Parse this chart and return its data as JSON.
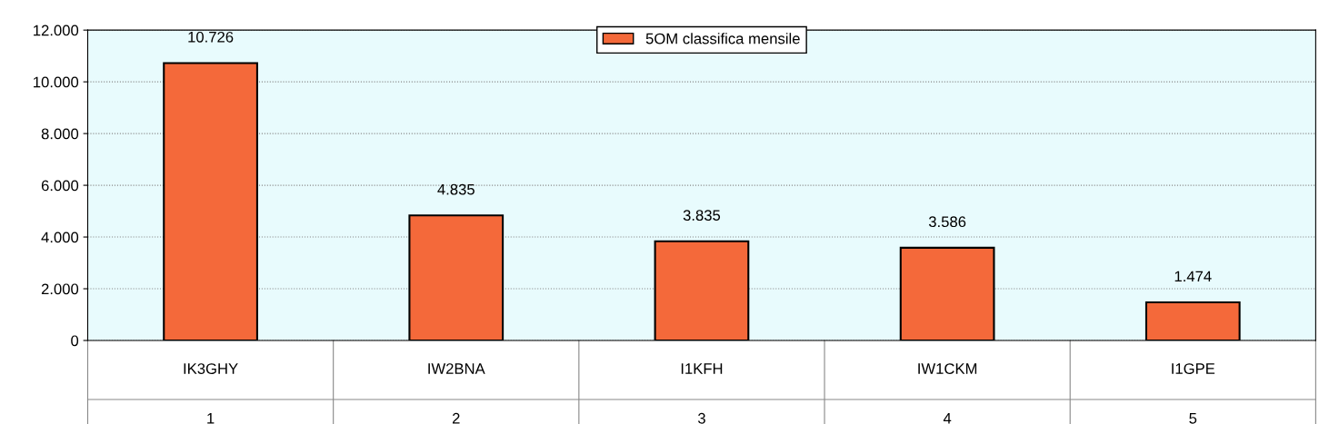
{
  "chart_data": {
    "type": "bar",
    "categories": [
      "IK3GHY\n1",
      "IW2BNA\n2",
      "I1KFH\n3",
      "IW1CKM\n4",
      "I1GPE\n5"
    ],
    "series": [
      {
        "name": "5OM classifica mensile",
        "color": "#f4693a",
        "values": [
          10726,
          4835,
          3835,
          3586,
          1474
        ]
      }
    ],
    "value_labels": [
      "10.726",
      "4.835",
      "3.835",
      "3.586",
      "1.474"
    ],
    "ylim": [
      0,
      12000
    ],
    "yticks": [
      {
        "value": 0,
        "label": "0"
      },
      {
        "value": 2000,
        "label": "2.000"
      },
      {
        "value": 4000,
        "label": "4.000"
      },
      {
        "value": 6000,
        "label": "6.000"
      },
      {
        "value": 8000,
        "label": "8.000"
      },
      {
        "value": 10000,
        "label": "10.000"
      },
      {
        "value": 12000,
        "label": "12.000"
      }
    ],
    "grid": "y",
    "legend": "top"
  }
}
